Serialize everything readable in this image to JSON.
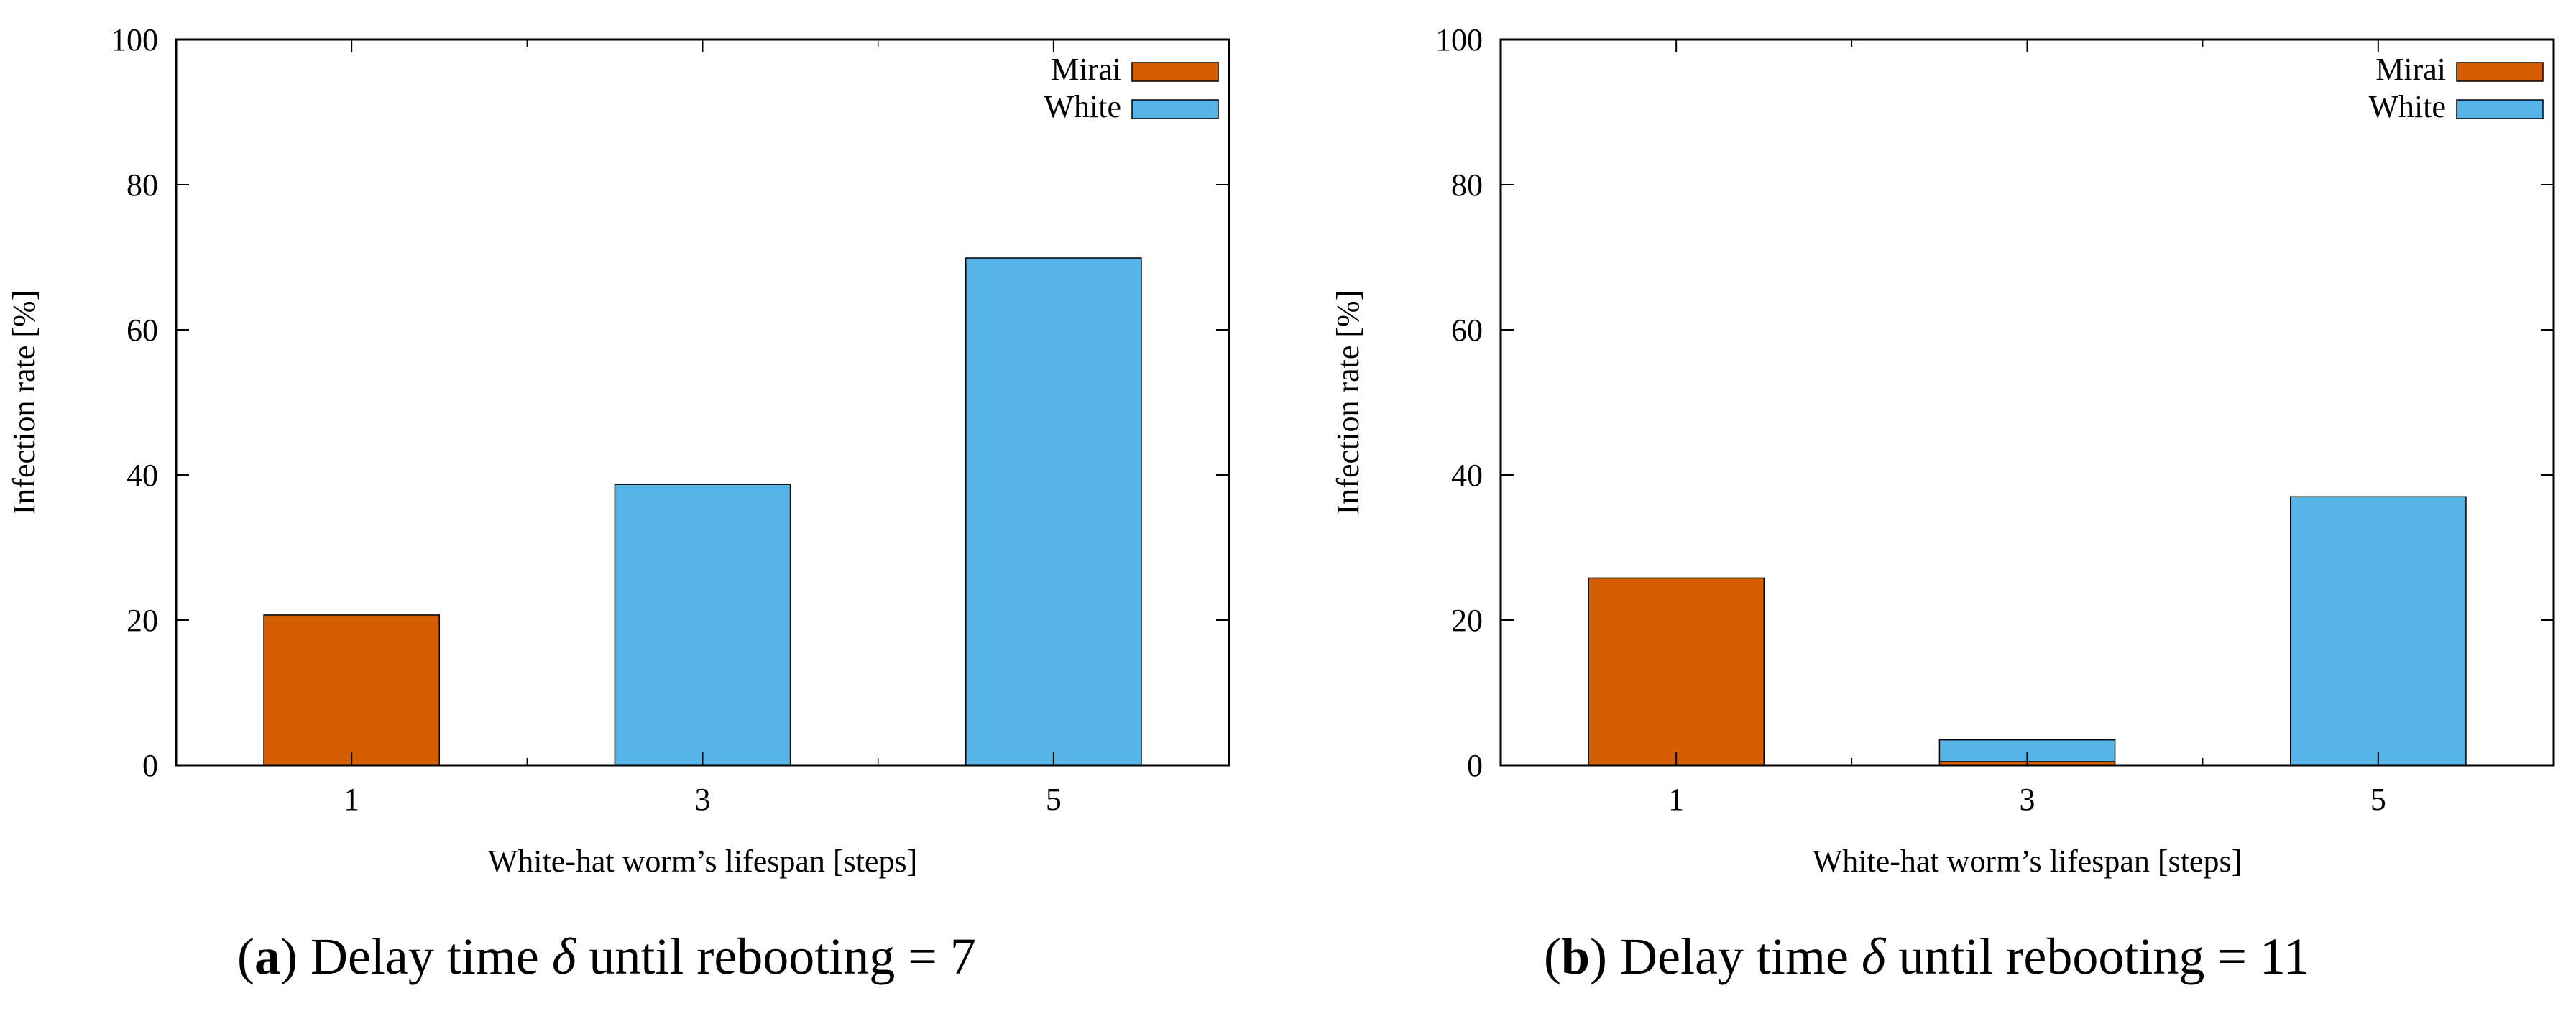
{
  "chart_data": [
    {
      "type": "bar",
      "stacked": true,
      "categories": [
        "1",
        "3",
        "5"
      ],
      "series": [
        {
          "name": "Mirai",
          "color": "#d55e00",
          "values": [
            20.7,
            0,
            0
          ]
        },
        {
          "name": "White",
          "color": "#56b4e9",
          "values": [
            0,
            38.7,
            69.9
          ]
        }
      ],
      "xlabel": "White-hat worm’s lifespan [steps]",
      "ylabel": "Infection rate [%]",
      "ylim": [
        0,
        100
      ],
      "yticks": [
        "0",
        "20",
        "40",
        "60",
        "80",
        "100"
      ],
      "legend": "top-right",
      "caption": {
        "letter": "a",
        "text_before": " Delay time ",
        "symbol": "δ",
        "text_after": " until rebooting = 7"
      }
    },
    {
      "type": "bar",
      "stacked": true,
      "categories": [
        "1",
        "3",
        "5"
      ],
      "series": [
        {
          "name": "Mirai",
          "color": "#d55e00",
          "values": [
            25.8,
            0.5,
            0
          ]
        },
        {
          "name": "White",
          "color": "#56b4e9",
          "values": [
            0,
            3.0,
            37.0
          ]
        }
      ],
      "xlabel": "White-hat worm’s lifespan [steps]",
      "ylabel": "Infection rate [%]",
      "ylim": [
        0,
        100
      ],
      "yticks": [
        "0",
        "20",
        "40",
        "60",
        "80",
        "100"
      ],
      "legend": "top-right",
      "caption": {
        "letter": "b",
        "text_before": " Delay time ",
        "symbol": "δ",
        "text_after": " until rebooting = 11"
      }
    }
  ]
}
